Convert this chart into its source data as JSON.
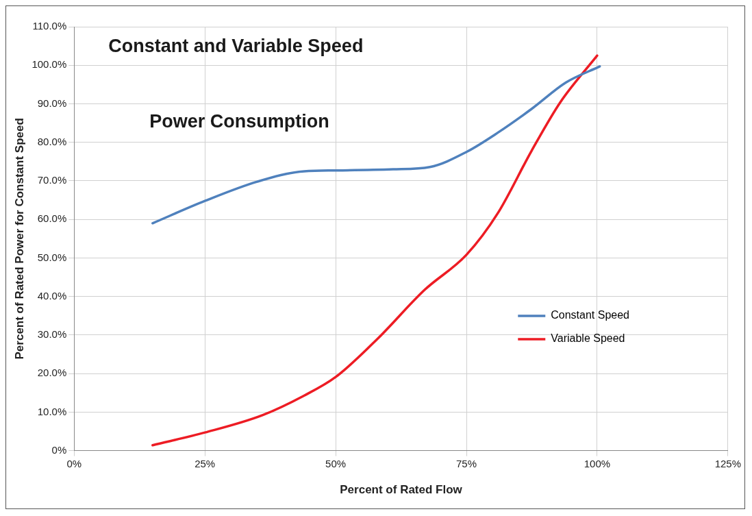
{
  "chart_data": {
    "type": "line",
    "title": "Constant and Variable Speed",
    "subtitle": "Power Consumption",
    "xlabel": "Percent of Rated Flow",
    "ylabel": "Percent of Rated Power for Constant Speed",
    "xlim": [
      0,
      125
    ],
    "xticks": [
      {
        "value": 0,
        "label": "0%"
      },
      {
        "value": 25,
        "label": "25%"
      },
      {
        "value": 50,
        "label": "50%"
      },
      {
        "value": 75,
        "label": "75%"
      },
      {
        "value": 100,
        "label": "100%"
      },
      {
        "value": 125,
        "label": "125%"
      }
    ],
    "ylim": [
      0,
      110
    ],
    "yticks": [
      {
        "value": 0,
        "label": "0%"
      },
      {
        "value": 10,
        "label": "10.0%"
      },
      {
        "value": 20,
        "label": "20.0%"
      },
      {
        "value": 30,
        "label": "30.0%"
      },
      {
        "value": 40,
        "label": "40.0%"
      },
      {
        "value": 50,
        "label": "50.0%"
      },
      {
        "value": 60,
        "label": "60.0%"
      },
      {
        "value": 70,
        "label": "70.0%"
      },
      {
        "value": 80,
        "label": "80.0%"
      },
      {
        "value": 90,
        "label": "90.0%"
      },
      {
        "value": 100,
        "label": "100.0%"
      },
      {
        "value": 110,
        "label": "110.0%"
      }
    ],
    "grid": true,
    "legend": "right",
    "marker": "none",
    "series": [
      {
        "name": "Constant Speed",
        "color": "#4f81bd",
        "x": [
          15,
          25,
          35,
          44,
          50,
          61,
          68,
          75,
          81,
          87.5,
          94,
          100.5
        ],
        "values": [
          59,
          64.8,
          69.8,
          72.5,
          72.7,
          73,
          73.6,
          77.5,
          82.5,
          88.7,
          95.5,
          99.7
        ]
      },
      {
        "name": "Variable Speed",
        "color": "#ed1c24",
        "x": [
          15,
          25,
          36,
          44,
          50,
          58,
          67,
          75,
          81,
          87.5,
          93,
          100
        ],
        "values": [
          1.4,
          4.7,
          9.2,
          14.3,
          19.1,
          29,
          41.7,
          50.8,
          61.6,
          77.9,
          90.5,
          102.5
        ]
      }
    ]
  }
}
